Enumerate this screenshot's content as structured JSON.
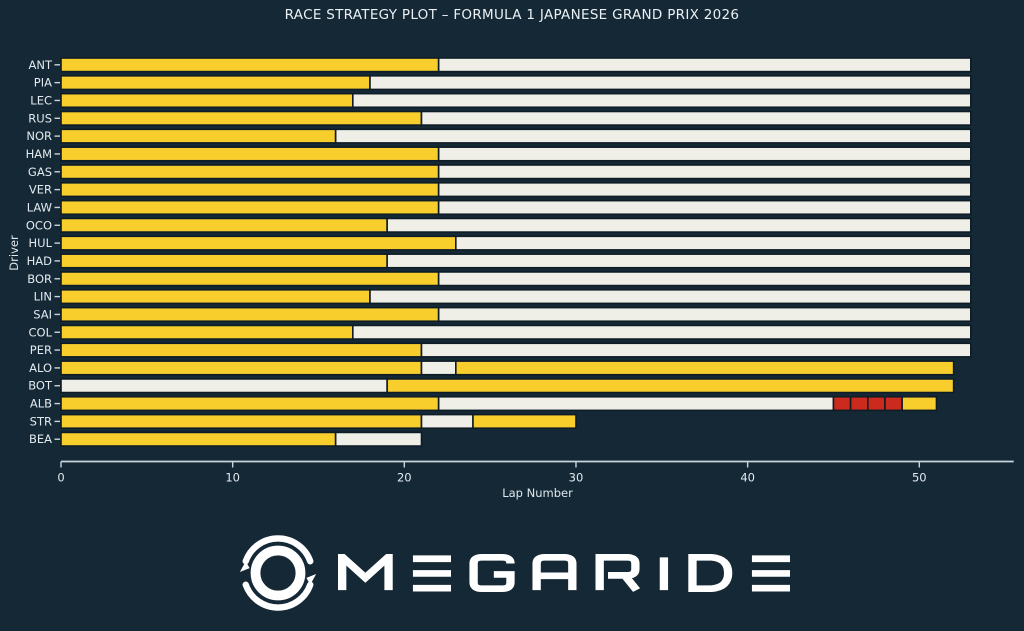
{
  "title": "RACE STRATEGY PLOT – FORMULA 1 JAPANESE GRAND PRIX 2026",
  "chart_data": {
    "type": "bar",
    "subtype": "horizontal-stacked-stint-timeline",
    "title": "RACE STRATEGY PLOT – FORMULA 1 JAPANESE GRAND PRIX 2026",
    "xlabel": "Lap Number",
    "ylabel": "Driver",
    "xticks": [
      0,
      10,
      20,
      30,
      40,
      50
    ],
    "xlim": [
      0,
      55.5
    ],
    "total_race_laps": 53,
    "grid": false,
    "legend": "none",
    "compound_colors": {
      "medium": "#F7CE2C",
      "hard": "#EFEEE7",
      "red": "#CC2A1D"
    },
    "drivers": [
      {
        "code": "ANT",
        "stints": [
          {
            "compound": "medium",
            "from": 0,
            "to": 22
          },
          {
            "compound": "hard",
            "from": 22,
            "to": 53
          }
        ]
      },
      {
        "code": "PIA",
        "stints": [
          {
            "compound": "medium",
            "from": 0,
            "to": 18
          },
          {
            "compound": "hard",
            "from": 18,
            "to": 53
          }
        ]
      },
      {
        "code": "LEC",
        "stints": [
          {
            "compound": "medium",
            "from": 0,
            "to": 17
          },
          {
            "compound": "hard",
            "from": 17,
            "to": 53
          }
        ]
      },
      {
        "code": "RUS",
        "stints": [
          {
            "compound": "medium",
            "from": 0,
            "to": 21
          },
          {
            "compound": "hard",
            "from": 21,
            "to": 53
          }
        ]
      },
      {
        "code": "NOR",
        "stints": [
          {
            "compound": "medium",
            "from": 0,
            "to": 16
          },
          {
            "compound": "hard",
            "from": 16,
            "to": 53
          }
        ]
      },
      {
        "code": "HAM",
        "stints": [
          {
            "compound": "medium",
            "from": 0,
            "to": 22
          },
          {
            "compound": "hard",
            "from": 22,
            "to": 53
          }
        ]
      },
      {
        "code": "GAS",
        "stints": [
          {
            "compound": "medium",
            "from": 0,
            "to": 22
          },
          {
            "compound": "hard",
            "from": 22,
            "to": 53
          }
        ]
      },
      {
        "code": "VER",
        "stints": [
          {
            "compound": "medium",
            "from": 0,
            "to": 22
          },
          {
            "compound": "hard",
            "from": 22,
            "to": 53
          }
        ]
      },
      {
        "code": "LAW",
        "stints": [
          {
            "compound": "medium",
            "from": 0,
            "to": 22
          },
          {
            "compound": "hard",
            "from": 22,
            "to": 53
          }
        ]
      },
      {
        "code": "OCO",
        "stints": [
          {
            "compound": "medium",
            "from": 0,
            "to": 19
          },
          {
            "compound": "hard",
            "from": 19,
            "to": 53
          }
        ]
      },
      {
        "code": "HUL",
        "stints": [
          {
            "compound": "medium",
            "from": 0,
            "to": 23
          },
          {
            "compound": "hard",
            "from": 23,
            "to": 53
          }
        ]
      },
      {
        "code": "HAD",
        "stints": [
          {
            "compound": "medium",
            "from": 0,
            "to": 19
          },
          {
            "compound": "hard",
            "from": 19,
            "to": 53
          }
        ]
      },
      {
        "code": "BOR",
        "stints": [
          {
            "compound": "medium",
            "from": 0,
            "to": 22
          },
          {
            "compound": "hard",
            "from": 22,
            "to": 53
          }
        ]
      },
      {
        "code": "LIN",
        "stints": [
          {
            "compound": "medium",
            "from": 0,
            "to": 18
          },
          {
            "compound": "hard",
            "from": 18,
            "to": 53
          }
        ]
      },
      {
        "code": "SAI",
        "stints": [
          {
            "compound": "medium",
            "from": 0,
            "to": 22
          },
          {
            "compound": "hard",
            "from": 22,
            "to": 53
          }
        ]
      },
      {
        "code": "COL",
        "stints": [
          {
            "compound": "medium",
            "from": 0,
            "to": 17
          },
          {
            "compound": "hard",
            "from": 17,
            "to": 53
          }
        ]
      },
      {
        "code": "PER",
        "stints": [
          {
            "compound": "medium",
            "from": 0,
            "to": 21
          },
          {
            "compound": "hard",
            "from": 21,
            "to": 53
          }
        ]
      },
      {
        "code": "ALO",
        "stints": [
          {
            "compound": "medium",
            "from": 0,
            "to": 21
          },
          {
            "compound": "hard",
            "from": 21,
            "to": 23
          },
          {
            "compound": "medium",
            "from": 23,
            "to": 52
          }
        ]
      },
      {
        "code": "BOT",
        "stints": [
          {
            "compound": "hard",
            "from": 0,
            "to": 19
          },
          {
            "compound": "medium",
            "from": 19,
            "to": 52
          }
        ]
      },
      {
        "code": "ALB",
        "stints": [
          {
            "compound": "medium",
            "from": 0,
            "to": 22
          },
          {
            "compound": "hard",
            "from": 22,
            "to": 45
          },
          {
            "compound": "red",
            "from": 45,
            "to": 46
          },
          {
            "compound": "red",
            "from": 46,
            "to": 47
          },
          {
            "compound": "red",
            "from": 47,
            "to": 48
          },
          {
            "compound": "red",
            "from": 48,
            "to": 49
          },
          {
            "compound": "medium",
            "from": 49,
            "to": 51
          }
        ]
      },
      {
        "code": "STR",
        "stints": [
          {
            "compound": "medium",
            "from": 0,
            "to": 21
          },
          {
            "compound": "hard",
            "from": 21,
            "to": 24
          },
          {
            "compound": "medium",
            "from": 24,
            "to": 30
          }
        ]
      },
      {
        "code": "BEA",
        "stints": [
          {
            "compound": "medium",
            "from": 0,
            "to": 16
          },
          {
            "compound": "hard",
            "from": 16,
            "to": 21
          }
        ]
      }
    ]
  },
  "logo": {
    "brand": "MEGARIDE",
    "icon": "tire-swirl-icon",
    "color": "#FFFFFF"
  },
  "style": {
    "background": "#152836",
    "text_color": "#E8EEF2",
    "axis_color": "#C9D4DB",
    "bar_edge": "#0E1C26"
  }
}
